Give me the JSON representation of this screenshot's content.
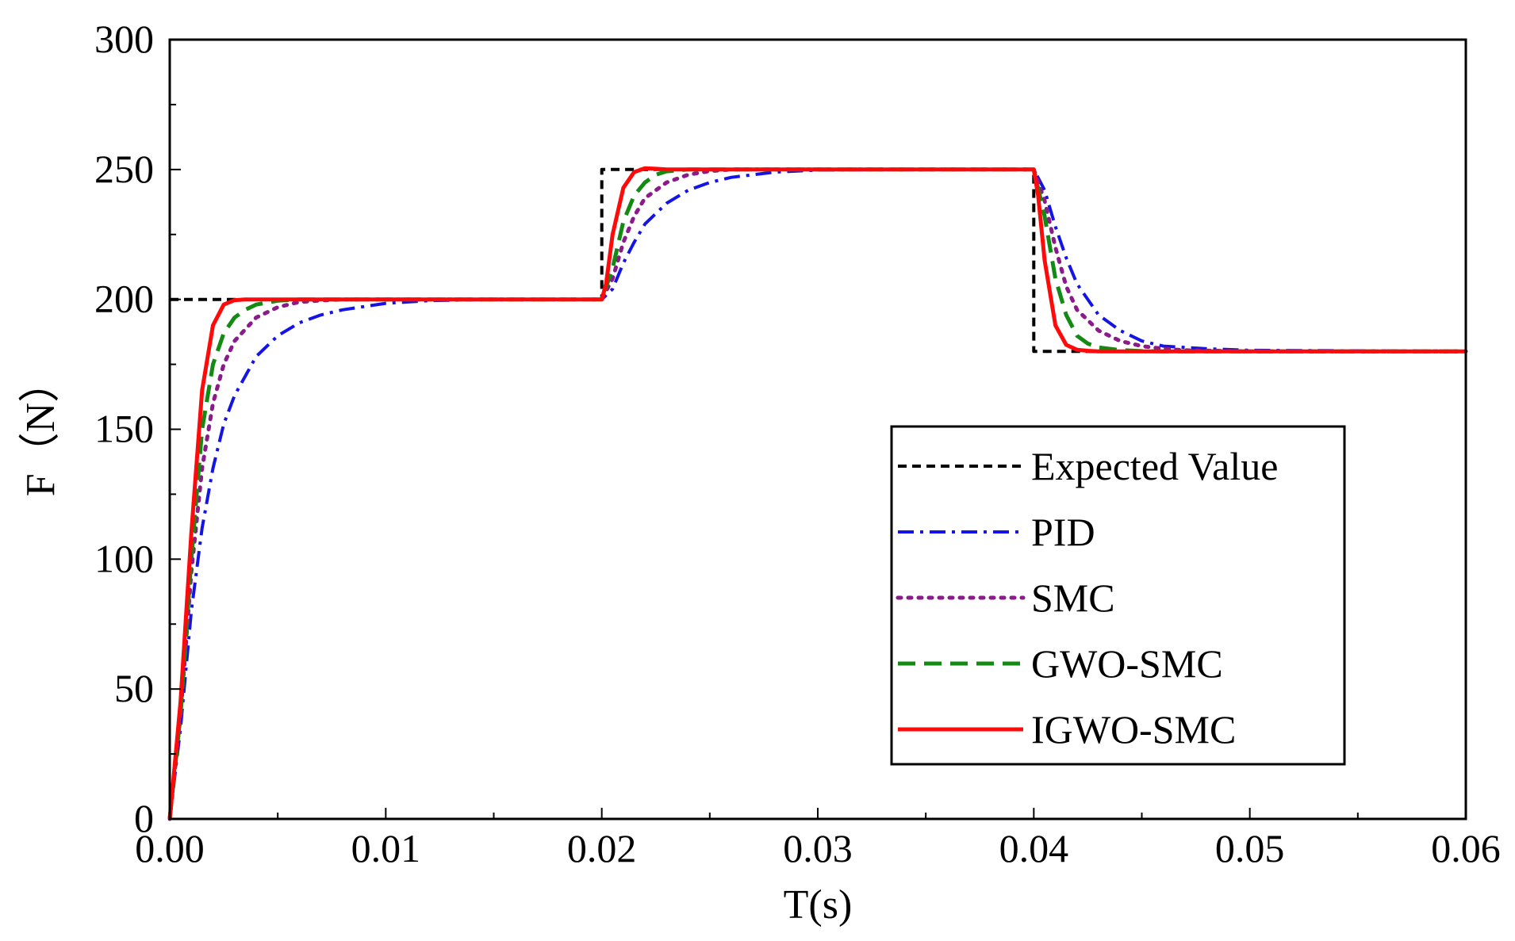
{
  "chart_data": {
    "type": "line",
    "title": "",
    "xlabel": "T(s)",
    "ylabel": "F（N）",
    "xlim": [
      0,
      0.06
    ],
    "ylim": [
      0,
      300
    ],
    "grid": false,
    "legend_position": "right",
    "x_ticks": [
      "0.00",
      "0.01",
      "0.02",
      "0.03",
      "0.04",
      "0.05",
      "0.06"
    ],
    "y_ticks": [
      "0",
      "50",
      "100",
      "150",
      "200",
      "250",
      "300"
    ],
    "series": [
      {
        "name": "Expected Value",
        "color": "#000000",
        "style": "short-dash",
        "x": [
          0,
          0.02,
          0.02,
          0.04,
          0.04,
          0.06
        ],
        "y": [
          200,
          200,
          250,
          250,
          180,
          180
        ]
      },
      {
        "name": "PID",
        "color": "#1414e6",
        "style": "dash-dot",
        "x": [
          0,
          0.0005,
          0.001,
          0.0015,
          0.002,
          0.0025,
          0.003,
          0.004,
          0.005,
          0.006,
          0.007,
          0.008,
          0.01,
          0.012,
          0.015,
          0.02,
          0.0205,
          0.021,
          0.0215,
          0.022,
          0.023,
          0.024,
          0.025,
          0.026,
          0.028,
          0.03,
          0.035,
          0.04,
          0.0405,
          0.041,
          0.0415,
          0.042,
          0.043,
          0.044,
          0.045,
          0.046,
          0.048,
          0.05,
          0.06
        ],
        "y": [
          0,
          35,
          80,
          112,
          135,
          152,
          163,
          178,
          186,
          191,
          194,
          196,
          198.5,
          199.5,
          200,
          200,
          204,
          214,
          222,
          229,
          237,
          242,
          245,
          247,
          249,
          249.8,
          250,
          250,
          242,
          228,
          216,
          206,
          194,
          188,
          184,
          182,
          181,
          180.4,
          180
        ]
      },
      {
        "name": "SMC",
        "color": "#8b1a8b",
        "style": "dotted",
        "x": [
          0,
          0.0005,
          0.001,
          0.0015,
          0.002,
          0.0025,
          0.003,
          0.004,
          0.005,
          0.006,
          0.007,
          0.008,
          0.01,
          0.02,
          0.0205,
          0.021,
          0.0215,
          0.022,
          0.023,
          0.024,
          0.025,
          0.026,
          0.028,
          0.03,
          0.04,
          0.0405,
          0.041,
          0.0415,
          0.042,
          0.043,
          0.044,
          0.045,
          0.046,
          0.047,
          0.05,
          0.06
        ],
        "y": [
          0,
          40,
          95,
          135,
          160,
          175,
          184,
          193,
          197,
          199,
          199.6,
          200,
          200,
          200,
          208,
          222,
          232,
          239,
          245,
          248,
          249.4,
          250,
          250,
          250,
          250,
          238,
          220,
          205,
          196,
          188,
          184,
          182,
          181,
          180.4,
          180,
          180
        ]
      },
      {
        "name": "GWO-SMC",
        "color": "#138a13",
        "style": "dashed",
        "x": [
          0,
          0.0005,
          0.001,
          0.0015,
          0.002,
          0.0025,
          0.003,
          0.0035,
          0.004,
          0.005,
          0.006,
          0.008,
          0.01,
          0.02,
          0.0205,
          0.021,
          0.0215,
          0.022,
          0.0225,
          0.023,
          0.024,
          0.025,
          0.03,
          0.04,
          0.0405,
          0.041,
          0.0415,
          0.042,
          0.0425,
          0.043,
          0.044,
          0.045,
          0.046,
          0.05,
          0.06
        ],
        "y": [
          0,
          40,
          100,
          150,
          175,
          187,
          193,
          196,
          198,
          199.5,
          200,
          200,
          200,
          200,
          212,
          230,
          240,
          245,
          248,
          249.3,
          250,
          250,
          250,
          250,
          232,
          208,
          194,
          186,
          183,
          181.5,
          180.5,
          180.1,
          180,
          180,
          180
        ]
      },
      {
        "name": "IGWO-SMC",
        "color": "#ff0a0a",
        "style": "solid",
        "x": [
          0,
          0.0005,
          0.001,
          0.0015,
          0.002,
          0.0025,
          0.003,
          0.0035,
          0.004,
          0.005,
          0.01,
          0.02,
          0.0202,
          0.0205,
          0.021,
          0.0215,
          0.022,
          0.0225,
          0.023,
          0.025,
          0.03,
          0.04,
          0.0402,
          0.0405,
          0.041,
          0.0415,
          0.042,
          0.0425,
          0.043,
          0.045,
          0.05,
          0.06
        ],
        "y": [
          0,
          45,
          110,
          165,
          190,
          198,
          199.7,
          200,
          200,
          200,
          200,
          200,
          206,
          225,
          243,
          249,
          250.5,
          250.3,
          250,
          250,
          250,
          250,
          240,
          215,
          190,
          182.5,
          180.6,
          180.2,
          180,
          180,
          180,
          180
        ]
      }
    ]
  }
}
